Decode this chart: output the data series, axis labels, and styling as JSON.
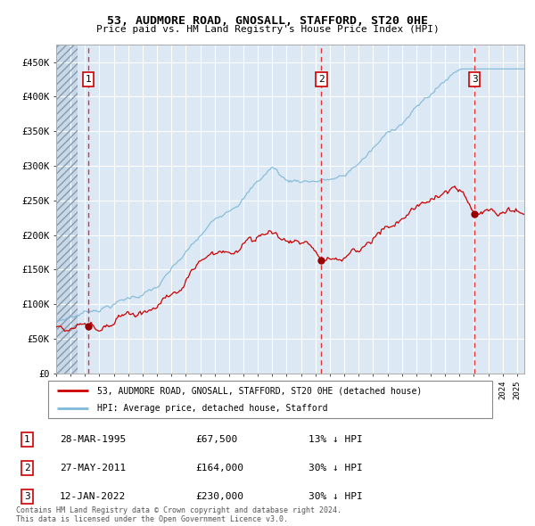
{
  "title": "53, AUDMORE ROAD, GNOSALL, STAFFORD, ST20 0HE",
  "subtitle": "Price paid vs. HM Land Registry's House Price Index (HPI)",
  "hpi_label": "HPI: Average price, detached house, Stafford",
  "property_label": "53, AUDMORE ROAD, GNOSALL, STAFFORD, ST20 0HE (detached house)",
  "transactions": [
    {
      "num": 1,
      "date": "28-MAR-1995",
      "price": 67500,
      "pct": "13%",
      "dir": "↓"
    },
    {
      "num": 2,
      "date": "27-MAY-2011",
      "price": 164000,
      "pct": "30%",
      "dir": "↓"
    },
    {
      "num": 3,
      "date": "12-JAN-2022",
      "price": 230000,
      "pct": "30%",
      "dir": "↓"
    }
  ],
  "transaction_dates_decimal": [
    1995.24,
    2011.41,
    2022.04
  ],
  "transaction_prices": [
    67500,
    164000,
    230000
  ],
  "hpi_color": "#7fb8d8",
  "price_color": "#cc0000",
  "dot_color": "#990000",
  "vline_color": "#dd3333",
  "background_color": "#dce9f5",
  "hatch_color": "#b8c8d8",
  "grid_color": "#ffffff",
  "ylim": [
    0,
    475000
  ],
  "yticks": [
    0,
    50000,
    100000,
    150000,
    200000,
    250000,
    300000,
    350000,
    400000,
    450000
  ],
  "ytick_labels": [
    "£0",
    "£50K",
    "£100K",
    "£150K",
    "£200K",
    "£250K",
    "£300K",
    "£350K",
    "£400K",
    "£450K"
  ],
  "xlim_start": 1993.0,
  "xlim_end": 2025.5,
  "hatch_end": 1994.5,
  "footer": "Contains HM Land Registry data © Crown copyright and database right 2024.\nThis data is licensed under the Open Government Licence v3.0."
}
